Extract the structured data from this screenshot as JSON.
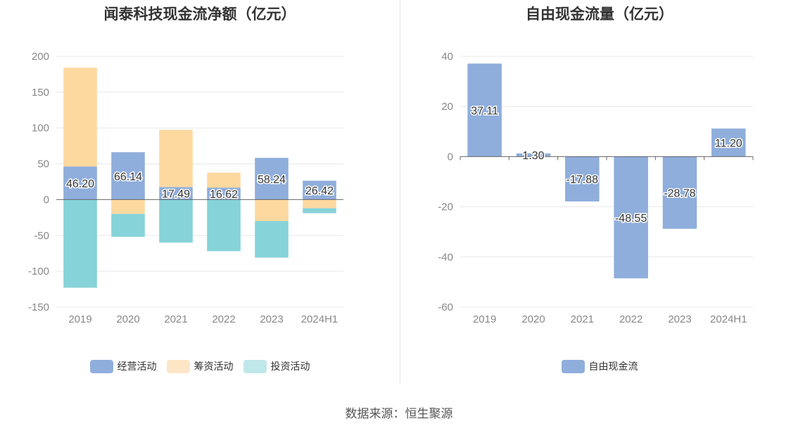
{
  "source": "数据来源：恒生聚源",
  "colors": {
    "operating": "#8faedc",
    "financing": "#fdd9a0",
    "investing": "#86d3d9",
    "free": "#8faedc",
    "investing_legend": "#c0e7ea",
    "financing_legend": "#fde6c6"
  },
  "chart_data": [
    {
      "type": "bar",
      "stacked": true,
      "title": "闻泰科技现金流净额（亿元）",
      "categories": [
        "2019",
        "2020",
        "2021",
        "2022",
        "2023",
        "2024H1"
      ],
      "ylim": [
        -150,
        200
      ],
      "yticks": [
        200,
        150,
        100,
        50,
        0,
        -50,
        -100,
        -150
      ],
      "grid": true,
      "legend_position": "bottom",
      "series": [
        {
          "name": "经营活动",
          "color_key": "operating",
          "values": [
            46.2,
            66.14,
            17.49,
            16.62,
            58.24,
            26.42
          ]
        },
        {
          "name": "筹资活动",
          "color_key": "financing",
          "values": [
            138,
            -20,
            80,
            21,
            -30,
            -12
          ]
        },
        {
          "name": "投资活动",
          "color_key": "investing",
          "values": [
            -123,
            -32,
            -60,
            -72,
            -51,
            -7
          ]
        }
      ],
      "data_labels": [
        "46.20",
        "66.14",
        "17.49",
        "16.62",
        "58.24",
        "26.42"
      ]
    },
    {
      "type": "bar",
      "title": "自由现金流量（亿元）",
      "categories": [
        "2019",
        "2020",
        "2021",
        "2022",
        "2023",
        "2024H1"
      ],
      "ylim": [
        -60,
        40
      ],
      "yticks": [
        40,
        20,
        0,
        -20,
        -40,
        -60
      ],
      "grid": true,
      "legend_position": "bottom",
      "series": [
        {
          "name": "自由现金流",
          "color_key": "free",
          "values": [
            37.11,
            1.3,
            -17.88,
            -48.55,
            -28.78,
            11.2
          ]
        }
      ],
      "data_labels": [
        "37.11",
        "1.30",
        "-17.88",
        "-48.55",
        "-28.78",
        "11.20"
      ]
    }
  ]
}
